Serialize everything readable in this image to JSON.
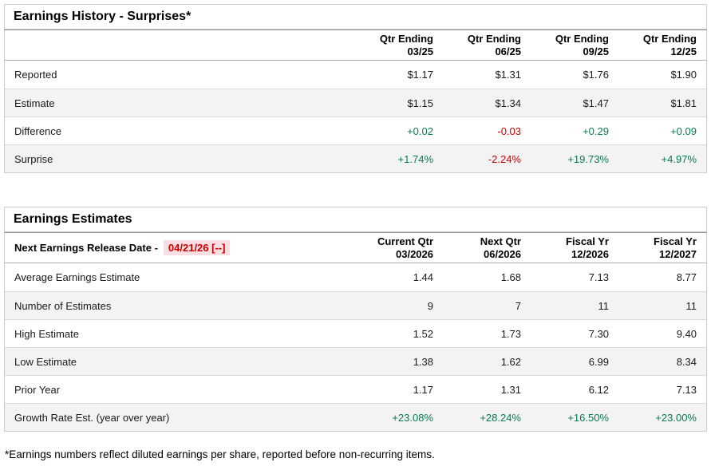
{
  "earnings_history": {
    "title": "Earnings History - Surprises*",
    "columns": [
      [
        "Qtr Ending",
        "03/25"
      ],
      [
        "Qtr Ending",
        "06/25"
      ],
      [
        "Qtr Ending",
        "09/25"
      ],
      [
        "Qtr Ending",
        "12/25"
      ]
    ],
    "rows": [
      {
        "label": "Reported",
        "values": [
          "$1.17",
          "$1.31",
          "$1.76",
          "$1.90"
        ]
      },
      {
        "label": "Estimate",
        "values": [
          "$1.15",
          "$1.34",
          "$1.47",
          "$1.81"
        ]
      },
      {
        "label": "Difference",
        "values": [
          "+0.02",
          "-0.03",
          "+0.29",
          "+0.09"
        ]
      },
      {
        "label": "Surprise",
        "values": [
          "+1.74%",
          "-2.24%",
          "+19.73%",
          "+4.97%"
        ]
      }
    ]
  },
  "earnings_estimates": {
    "title": "Earnings Estimates",
    "release_date": {
      "label": "Next Earnings Release Date -",
      "value": "04/21/26 [--]"
    },
    "columns": [
      [
        "Current Qtr",
        "03/2026"
      ],
      [
        "Next Qtr",
        "06/2026"
      ],
      [
        "Fiscal Yr",
        "12/2026"
      ],
      [
        "Fiscal Yr",
        "12/2027"
      ]
    ],
    "rows": [
      {
        "label": "Average Earnings Estimate",
        "values": [
          "1.44",
          "1.68",
          "7.13",
          "8.77"
        ]
      },
      {
        "label": "Number of Estimates",
        "values": [
          "9",
          "7",
          "11",
          "11"
        ]
      },
      {
        "label": "High Estimate",
        "values": [
          "1.52",
          "1.73",
          "7.30",
          "9.40"
        ]
      },
      {
        "label": "Low Estimate",
        "values": [
          "1.38",
          "1.62",
          "6.99",
          "8.34"
        ]
      },
      {
        "label": "Prior Year",
        "values": [
          "1.17",
          "1.31",
          "6.12",
          "7.13"
        ]
      },
      {
        "label": "Growth Rate Est. (year over year)",
        "values": [
          "+23.08%",
          "+28.24%",
          "+16.50%",
          "+23.00%"
        ]
      }
    ]
  },
  "footnote": "*Earnings numbers reflect diluted earnings per share, reported before non-recurring items.",
  "colors": {
    "positive": "#077a55",
    "negative": "#c40000",
    "date_text": "#c40000",
    "date_highlight_bg": "#fbdee2",
    "row_alt_bg": "#f3f3f3",
    "border": "#cccccc"
  }
}
